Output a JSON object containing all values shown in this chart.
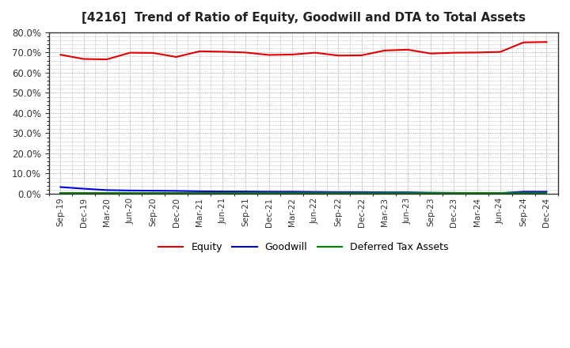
{
  "title": "[4216]  Trend of Ratio of Equity, Goodwill and DTA to Total Assets",
  "x_labels": [
    "Sep-19",
    "Dec-19",
    "Mar-20",
    "Jun-20",
    "Sep-20",
    "Dec-20",
    "Mar-21",
    "Jun-21",
    "Sep-21",
    "Dec-21",
    "Mar-22",
    "Jun-22",
    "Sep-22",
    "Dec-22",
    "Mar-23",
    "Jun-23",
    "Sep-23",
    "Dec-23",
    "Mar-24",
    "Jun-24",
    "Sep-24",
    "Dec-24"
  ],
  "equity": [
    0.689,
    0.668,
    0.666,
    0.699,
    0.698,
    0.678,
    0.706,
    0.704,
    0.7,
    0.688,
    0.69,
    0.699,
    0.685,
    0.686,
    0.71,
    0.714,
    0.695,
    0.699,
    0.7,
    0.703,
    0.75,
    0.752
  ],
  "goodwill": [
    0.033,
    0.025,
    0.018,
    0.016,
    0.015,
    0.014,
    0.012,
    0.011,
    0.011,
    0.01,
    0.01,
    0.009,
    0.008,
    0.008,
    0.007,
    0.007,
    0.005,
    0.004,
    0.003,
    0.003,
    0.01,
    0.01
  ],
  "dta": [
    0.003,
    0.003,
    0.003,
    0.003,
    0.003,
    0.003,
    0.003,
    0.003,
    0.003,
    0.003,
    0.003,
    0.003,
    0.003,
    0.003,
    0.003,
    0.003,
    0.003,
    0.003,
    0.003,
    0.003,
    0.003,
    0.003
  ],
  "equity_color": "#e00000",
  "goodwill_color": "#0000dd",
  "dta_color": "#008000",
  "bg_color": "#ffffff",
  "grid_color": "#888888",
  "ylim": [
    0.0,
    0.8
  ],
  "yticks": [
    0.0,
    0.1,
    0.2,
    0.3,
    0.4,
    0.5,
    0.6,
    0.7
  ],
  "legend_labels": [
    "Equity",
    "Goodwill",
    "Deferred Tax Assets"
  ],
  "line_width": 1.5,
  "title_fontsize": 11
}
